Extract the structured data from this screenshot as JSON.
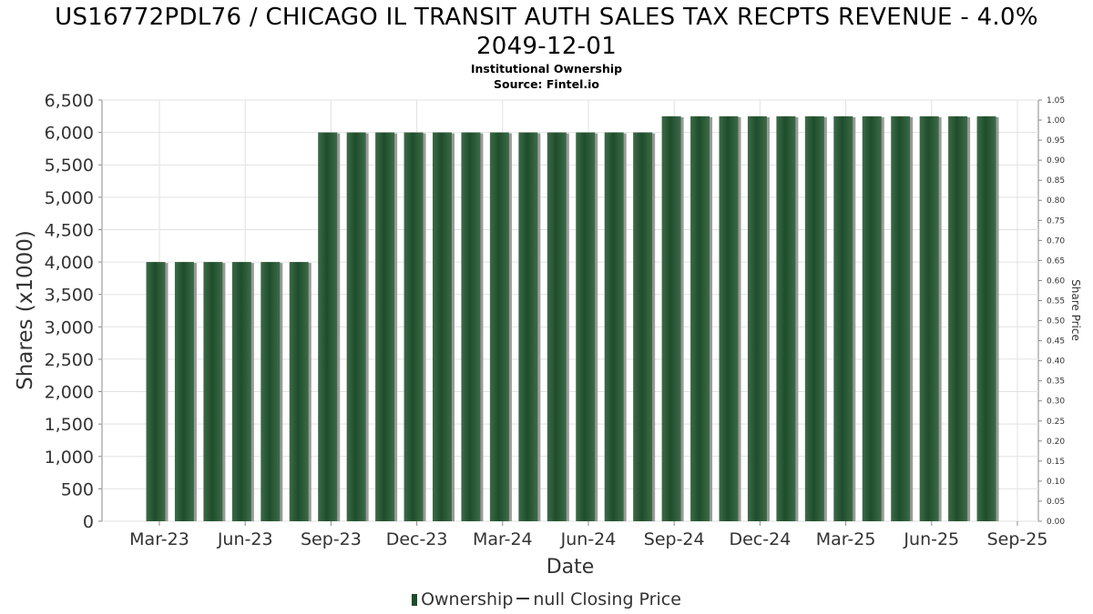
{
  "header": {
    "title_line1": "US16772PDL76 / CHICAGO IL TRANSIT AUTH SALES TAX RECPTS REVENUE - 4.0%",
    "title_line2": "2049-12-01",
    "subtitle": "Institutional Ownership",
    "source": "Source: Fintel.io"
  },
  "legend": {
    "ownership": "Ownership",
    "price": "null Closing Price"
  },
  "colors": {
    "bar": "#1e4d2b",
    "bar_highlight": "#3d6b48",
    "bar_shadow": "#9a9a9a",
    "grid": "#e2e2e2",
    "axis": "#888888"
  },
  "chart_data": {
    "type": "bar",
    "title": "Institutional Ownership",
    "xlabel": "Date",
    "ylabel": "Shares (x1000)",
    "y2label": "Share Price",
    "ylim": [
      0,
      6500
    ],
    "y2lim": [
      0,
      1.05
    ],
    "y_ticks": [
      "0",
      "500",
      "1,000",
      "1,500",
      "2,000",
      "2,500",
      "3,000",
      "3,500",
      "4,000",
      "4,500",
      "5,000",
      "5,500",
      "6,000",
      "6,500"
    ],
    "y2_ticks": [
      "0.00",
      "0.05",
      "0.10",
      "0.15",
      "0.20",
      "0.25",
      "0.30",
      "0.35",
      "0.40",
      "0.45",
      "0.50",
      "0.55",
      "0.60",
      "0.65",
      "0.70",
      "0.75",
      "0.80",
      "0.85",
      "0.90",
      "0.95",
      "1.00",
      "1.05"
    ],
    "x_ticks": [
      "Mar-23",
      "Jun-23",
      "Sep-23",
      "Dec-23",
      "Mar-24",
      "Jun-24",
      "Sep-24",
      "Dec-24",
      "Mar-25",
      "Jun-25",
      "Sep-25"
    ],
    "grid": true,
    "legend_position": "bottom",
    "series": [
      {
        "name": "Ownership",
        "values": [
          4000,
          4000,
          4000,
          4000,
          4000,
          4000,
          6000,
          6000,
          6000,
          6000,
          6000,
          6000,
          6000,
          6000,
          6000,
          6000,
          6000,
          6000,
          6250,
          6250,
          6250,
          6250,
          6250,
          6250,
          6250,
          6250,
          6250,
          6250,
          6250,
          6250
        ]
      }
    ]
  }
}
